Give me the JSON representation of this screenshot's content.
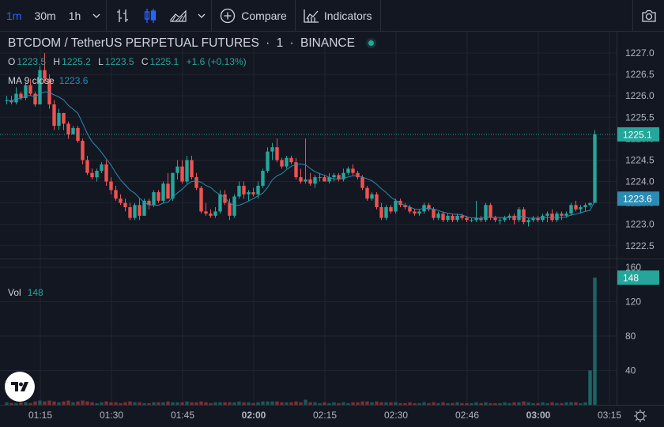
{
  "toolbar": {
    "intervals": [
      "1m",
      "30m",
      "1h"
    ],
    "active_interval": "1m",
    "compare_label": "Compare",
    "indicators_label": "Indicators"
  },
  "header": {
    "symbol_title": "BTCDOM / TetherUS PERPETUAL FUTURES",
    "interval": "1",
    "exchange": "BINANCE"
  },
  "ohlc": {
    "o_label": "O",
    "o": "1223.5",
    "h_label": "H",
    "h": "1225.2",
    "l_label": "L",
    "l": "1223.5",
    "c_label": "C",
    "c": "1225.1",
    "change": "+1.6 (+0.13%)"
  },
  "ma": {
    "label": "MA 9 close",
    "value": "1223.6"
  },
  "vol": {
    "label": "Vol",
    "value": "148"
  },
  "colors": {
    "up": "#26a69a",
    "down": "#ef5350",
    "ma": "#2c8bb3",
    "bg": "#131722",
    "grid": "#1f2430"
  },
  "chart_data": {
    "type": "candlestick",
    "price_axis": {
      "ticks": [
        1222.5,
        1223.0,
        1223.5,
        1224.0,
        1224.5,
        1225.0,
        1225.5,
        1226.0,
        1226.5,
        1227.0
      ],
      "range": [
        1222.2,
        1227.5
      ]
    },
    "volume_axis": {
      "ticks": [
        40,
        80,
        120,
        160
      ],
      "range": [
        0,
        160
      ]
    },
    "time_ticks": [
      "01:15",
      "01:30",
      "01:45",
      "02:00",
      "02:15",
      "02:30",
      "02:46",
      "03:00",
      "03:15"
    ],
    "last_price": 1225.1,
    "ma_last": 1223.6,
    "last_volume": 148,
    "candles": [
      [
        1225.9,
        1226.0,
        1225.8,
        1225.9,
        3
      ],
      [
        1225.9,
        1226.0,
        1225.8,
        1225.85,
        2
      ],
      [
        1225.85,
        1226.2,
        1225.8,
        1226.05,
        2
      ],
      [
        1226.05,
        1226.1,
        1225.9,
        1225.95,
        3
      ],
      [
        1225.95,
        1226.3,
        1225.9,
        1226.25,
        3
      ],
      [
        1226.25,
        1226.4,
        1226.0,
        1226.05,
        2
      ],
      [
        1226.05,
        1226.1,
        1225.75,
        1225.8,
        4
      ],
      [
        1225.8,
        1226.7,
        1225.8,
        1226.6,
        5
      ],
      [
        1226.6,
        1227.0,
        1226.3,
        1226.4,
        4
      ],
      [
        1226.4,
        1226.5,
        1225.7,
        1225.8,
        5
      ],
      [
        1225.8,
        1225.9,
        1225.2,
        1225.3,
        4
      ],
      [
        1225.3,
        1225.7,
        1225.2,
        1225.6,
        3
      ],
      [
        1225.6,
        1225.6,
        1225.2,
        1225.35,
        4
      ],
      [
        1225.35,
        1225.4,
        1225.0,
        1225.1,
        5
      ],
      [
        1225.1,
        1225.3,
        1225.1,
        1225.25,
        3
      ],
      [
        1225.25,
        1225.3,
        1224.9,
        1224.95,
        4
      ],
      [
        1224.95,
        1225.0,
        1224.4,
        1224.5,
        5
      ],
      [
        1224.5,
        1224.6,
        1224.15,
        1224.2,
        4
      ],
      [
        1224.2,
        1224.3,
        1224.05,
        1224.1,
        3
      ],
      [
        1224.1,
        1224.3,
        1224.0,
        1224.25,
        2
      ],
      [
        1224.25,
        1224.45,
        1224.2,
        1224.4,
        3
      ],
      [
        1224.4,
        1224.5,
        1223.9,
        1224.0,
        4
      ],
      [
        1224.0,
        1224.1,
        1223.7,
        1223.8,
        3
      ],
      [
        1223.8,
        1223.9,
        1223.55,
        1223.6,
        3
      ],
      [
        1223.6,
        1223.7,
        1223.45,
        1223.5,
        2
      ],
      [
        1223.5,
        1223.6,
        1223.3,
        1223.4,
        3
      ],
      [
        1223.4,
        1223.5,
        1223.1,
        1223.15,
        4
      ],
      [
        1223.15,
        1223.5,
        1223.1,
        1223.45,
        3
      ],
      [
        1223.45,
        1223.6,
        1223.1,
        1223.2,
        3
      ],
      [
        1223.2,
        1223.6,
        1223.2,
        1223.55,
        2
      ],
      [
        1223.55,
        1223.6,
        1223.35,
        1223.45,
        2
      ],
      [
        1223.45,
        1223.8,
        1223.4,
        1223.75,
        3
      ],
      [
        1223.75,
        1223.8,
        1223.5,
        1223.55,
        3
      ],
      [
        1223.55,
        1224.0,
        1223.5,
        1223.95,
        3
      ],
      [
        1223.95,
        1224.2,
        1223.6,
        1223.6,
        4
      ],
      [
        1223.6,
        1224.2,
        1223.55,
        1224.2,
        3
      ],
      [
        1224.2,
        1224.5,
        1224.05,
        1224.35,
        3
      ],
      [
        1224.35,
        1224.5,
        1223.95,
        1224.0,
        3
      ],
      [
        1224.0,
        1224.6,
        1223.95,
        1224.5,
        4
      ],
      [
        1224.5,
        1224.6,
        1224.05,
        1224.1,
        3
      ],
      [
        1224.1,
        1224.2,
        1223.8,
        1223.85,
        3
      ],
      [
        1223.85,
        1223.9,
        1223.25,
        1223.3,
        4
      ],
      [
        1223.3,
        1223.5,
        1223.2,
        1223.25,
        3
      ],
      [
        1223.25,
        1223.35,
        1223.15,
        1223.2,
        2
      ],
      [
        1223.2,
        1223.4,
        1223.15,
        1223.3,
        3
      ],
      [
        1223.3,
        1223.8,
        1223.25,
        1223.7,
        3
      ],
      [
        1223.7,
        1223.8,
        1223.45,
        1223.5,
        3
      ],
      [
        1223.5,
        1223.6,
        1223.1,
        1223.2,
        3
      ],
      [
        1223.2,
        1223.7,
        1223.15,
        1223.65,
        3
      ],
      [
        1223.65,
        1224.0,
        1223.6,
        1223.9,
        4
      ],
      [
        1223.9,
        1224.0,
        1223.6,
        1223.7,
        3
      ],
      [
        1223.7,
        1223.8,
        1223.55,
        1223.75,
        3
      ],
      [
        1223.75,
        1223.85,
        1223.65,
        1223.7,
        2
      ],
      [
        1223.7,
        1224.0,
        1223.6,
        1223.9,
        3
      ],
      [
        1223.9,
        1224.3,
        1223.85,
        1224.25,
        4
      ],
      [
        1224.25,
        1224.8,
        1224.2,
        1224.7,
        4
      ],
      [
        1224.7,
        1224.9,
        1224.5,
        1224.8,
        4
      ],
      [
        1224.8,
        1225.0,
        1224.45,
        1224.5,
        4
      ],
      [
        1224.5,
        1224.55,
        1224.3,
        1224.35,
        3
      ],
      [
        1224.35,
        1224.6,
        1224.3,
        1224.55,
        3
      ],
      [
        1224.55,
        1224.6,
        1224.4,
        1224.45,
        3
      ],
      [
        1224.45,
        1224.55,
        1224.05,
        1224.1,
        4
      ],
      [
        1224.1,
        1224.3,
        1223.95,
        1224.0,
        3
      ],
      [
        1224.0,
        1225.0,
        1223.95,
        1224.05,
        6
      ],
      [
        1224.05,
        1224.2,
        1223.9,
        1223.95,
        3
      ],
      [
        1223.95,
        1224.15,
        1223.85,
        1224.1,
        3
      ],
      [
        1224.1,
        1224.2,
        1224.0,
        1224.1,
        2
      ],
      [
        1224.1,
        1224.15,
        1224.0,
        1224.0,
        3
      ],
      [
        1224.0,
        1224.2,
        1223.95,
        1224.1,
        2
      ],
      [
        1224.1,
        1224.2,
        1224.0,
        1224.15,
        3
      ],
      [
        1224.15,
        1224.2,
        1224.0,
        1224.05,
        2
      ],
      [
        1224.05,
        1224.3,
        1224.0,
        1224.2,
        3
      ],
      [
        1224.2,
        1224.35,
        1224.15,
        1224.3,
        2
      ],
      [
        1224.3,
        1224.4,
        1224.15,
        1224.2,
        3
      ],
      [
        1224.2,
        1224.25,
        1224.05,
        1224.1,
        3
      ],
      [
        1224.1,
        1224.15,
        1223.8,
        1223.85,
        4
      ],
      [
        1223.85,
        1223.9,
        1223.55,
        1223.6,
        4
      ],
      [
        1223.6,
        1223.75,
        1223.55,
        1223.7,
        3
      ],
      [
        1223.7,
        1223.75,
        1223.35,
        1223.4,
        4
      ],
      [
        1223.4,
        1223.5,
        1223.1,
        1223.15,
        3
      ],
      [
        1223.15,
        1223.45,
        1223.1,
        1223.4,
        3
      ],
      [
        1223.4,
        1223.45,
        1223.25,
        1223.3,
        3
      ],
      [
        1223.3,
        1223.6,
        1223.25,
        1223.55,
        3
      ],
      [
        1223.55,
        1223.6,
        1223.4,
        1223.45,
        2
      ],
      [
        1223.45,
        1223.5,
        1223.35,
        1223.4,
        2
      ],
      [
        1223.4,
        1223.45,
        1223.25,
        1223.3,
        3
      ],
      [
        1223.3,
        1223.35,
        1223.2,
        1223.25,
        2
      ],
      [
        1223.25,
        1223.35,
        1223.2,
        1223.3,
        2
      ],
      [
        1223.3,
        1223.5,
        1223.25,
        1223.45,
        3
      ],
      [
        1223.45,
        1223.5,
        1223.3,
        1223.35,
        2
      ],
      [
        1223.35,
        1223.4,
        1223.1,
        1223.15,
        3
      ],
      [
        1223.15,
        1223.3,
        1223.1,
        1223.25,
        2
      ],
      [
        1223.25,
        1223.3,
        1223.05,
        1223.1,
        3
      ],
      [
        1223.1,
        1223.25,
        1223.05,
        1223.2,
        2
      ],
      [
        1223.2,
        1223.25,
        1223.05,
        1223.1,
        2
      ],
      [
        1223.1,
        1223.25,
        1223.05,
        1223.2,
        3
      ],
      [
        1223.2,
        1223.25,
        1223.1,
        1223.15,
        2
      ],
      [
        1223.15,
        1223.2,
        1223.05,
        1223.1,
        2
      ],
      [
        1223.1,
        1223.15,
        1223.05,
        1223.1,
        2
      ],
      [
        1223.1,
        1223.55,
        1223.05,
        1223.15,
        3
      ],
      [
        1223.15,
        1223.2,
        1223.05,
        1223.1,
        2
      ],
      [
        1223.1,
        1223.5,
        1223.05,
        1223.45,
        3
      ],
      [
        1223.45,
        1223.5,
        1223.1,
        1223.15,
        2
      ],
      [
        1223.15,
        1223.2,
        1223.05,
        1223.1,
        2
      ],
      [
        1223.1,
        1223.15,
        1223.0,
        1223.1,
        2
      ],
      [
        1223.1,
        1223.2,
        1223.05,
        1223.15,
        3
      ],
      [
        1223.15,
        1223.25,
        1223.1,
        1223.2,
        2
      ],
      [
        1223.2,
        1223.25,
        1223.0,
        1223.1,
        3
      ],
      [
        1223.1,
        1223.4,
        1223.05,
        1223.35,
        3
      ],
      [
        1223.35,
        1223.4,
        1223.0,
        1223.05,
        4
      ],
      [
        1223.05,
        1223.15,
        1222.95,
        1223.1,
        3
      ],
      [
        1223.1,
        1223.2,
        1223.05,
        1223.15,
        2
      ],
      [
        1223.15,
        1223.2,
        1223.05,
        1223.1,
        2
      ],
      [
        1223.1,
        1223.25,
        1223.05,
        1223.2,
        3
      ],
      [
        1223.2,
        1223.3,
        1223.05,
        1223.25,
        2
      ],
      [
        1223.25,
        1223.35,
        1223.05,
        1223.1,
        3
      ],
      [
        1223.1,
        1223.3,
        1223.05,
        1223.25,
        2
      ],
      [
        1223.25,
        1223.3,
        1223.1,
        1223.2,
        2
      ],
      [
        1223.2,
        1223.3,
        1223.15,
        1223.25,
        3
      ],
      [
        1223.25,
        1223.5,
        1223.2,
        1223.45,
        3
      ],
      [
        1223.45,
        1223.55,
        1223.3,
        1223.35,
        3
      ],
      [
        1223.35,
        1223.45,
        1223.25,
        1223.4,
        2
      ],
      [
        1223.4,
        1223.5,
        1223.3,
        1223.45,
        3
      ],
      [
        1223.45,
        1223.5,
        1223.4,
        1223.5,
        40
      ],
      [
        1223.5,
        1225.2,
        1223.5,
        1225.1,
        148
      ]
    ]
  }
}
